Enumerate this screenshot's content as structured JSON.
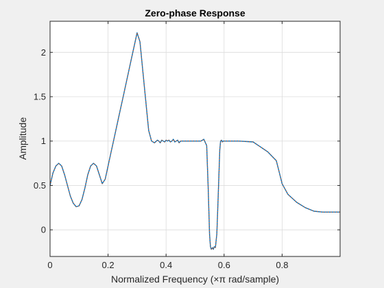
{
  "chart_data": {
    "type": "line",
    "title": "Zero-phase Response",
    "xlabel": "Normalized Frequency (×π rad/sample)",
    "ylabel": "Amplitude",
    "xlim": [
      0,
      1
    ],
    "ylim": [
      -0.3,
      2.35
    ],
    "xticks": [
      0,
      0.2,
      0.4,
      0.6,
      0.8
    ],
    "xticklabels": [
      "0",
      "0.2",
      "0.4",
      "0.6",
      "0.8"
    ],
    "yticks": [
      0,
      0.5,
      1,
      1.5,
      2
    ],
    "yticklabels": [
      "0",
      "0.5",
      "1",
      "1.5",
      "2"
    ],
    "grid": true,
    "colors": {
      "axes_background": "#ffffff",
      "figure_background": "#f0f0f0",
      "grid": "#dcdcdc",
      "axis": "#262626"
    },
    "series": [
      {
        "color": "#0072bd",
        "x": [
          0,
          0.01,
          0.02,
          0.03,
          0.04,
          0.05,
          0.06,
          0.07,
          0.08,
          0.09,
          0.1,
          0.11,
          0.12,
          0.13,
          0.14,
          0.15,
          0.16,
          0.17,
          0.18,
          0.19,
          0.2,
          0.21,
          0.22,
          0.23,
          0.24,
          0.25,
          0.26,
          0.27,
          0.28,
          0.29,
          0.3,
          0.31,
          0.32,
          0.33,
          0.34,
          0.35,
          0.36,
          0.37,
          0.375,
          0.38,
          0.385,
          0.39,
          0.395,
          0.4,
          0.405,
          0.41,
          0.415,
          0.42,
          0.425,
          0.43,
          0.435,
          0.44,
          0.445,
          0.45,
          0.46,
          0.47,
          0.48,
          0.49,
          0.5,
          0.51,
          0.52,
          0.53,
          0.54,
          0.545,
          0.55,
          0.553,
          0.556,
          0.56,
          0.563,
          0.566,
          0.57,
          0.575,
          0.58,
          0.585,
          0.588,
          0.591,
          0.594,
          0.597,
          0.6,
          0.605,
          0.61,
          0.615,
          0.62,
          0.63,
          0.65,
          0.7,
          0.75,
          0.78,
          0.79,
          0.8,
          0.82,
          0.85,
          0.88,
          0.91,
          0.94,
          0.97,
          1.0
        ],
        "y": [
          0.5,
          0.64,
          0.72,
          0.75,
          0.72,
          0.62,
          0.5,
          0.38,
          0.3,
          0.26,
          0.27,
          0.34,
          0.47,
          0.62,
          0.72,
          0.75,
          0.72,
          0.62,
          0.52,
          0.57,
          0.72,
          0.87,
          1.02,
          1.17,
          1.32,
          1.47,
          1.62,
          1.77,
          1.92,
          2.07,
          2.22,
          2.12,
          1.78,
          1.45,
          1.12,
          1.0,
          0.98,
          1.01,
          1.0,
          0.98,
          1.01,
          1.0,
          0.99,
          1.01,
          1.0,
          1.01,
          0.99,
          1.0,
          1.02,
          0.99,
          1.0,
          1.01,
          0.98,
          1.0,
          1.0,
          1.0,
          1.0,
          1.0,
          1.0,
          1.0,
          1.0,
          1.02,
          0.95,
          0.5,
          -0.05,
          -0.19,
          -0.22,
          -0.2,
          -0.22,
          -0.19,
          -0.2,
          -0.05,
          0.4,
          0.9,
          1.0,
          1.01,
          0.99,
          1.0,
          1.0,
          1.0,
          1.0,
          1.0,
          1.0,
          1.0,
          1.0,
          0.99,
          0.88,
          0.78,
          0.65,
          0.52,
          0.4,
          0.31,
          0.25,
          0.21,
          0.2,
          0.2,
          0.2
        ]
      },
      {
        "color": "#d95319",
        "style": "dotted",
        "x": [
          0,
          0.01,
          0.02,
          0.03,
          0.04,
          0.05,
          0.06,
          0.07,
          0.08,
          0.09,
          0.1,
          0.11,
          0.12,
          0.13,
          0.14,
          0.15,
          0.16,
          0.17,
          0.18,
          0.19,
          0.2,
          0.21,
          0.22,
          0.23,
          0.24,
          0.25,
          0.26,
          0.27,
          0.28,
          0.29,
          0.3,
          0.31,
          0.32,
          0.33,
          0.34,
          0.35,
          0.36,
          0.37,
          0.375,
          0.38,
          0.385,
          0.39,
          0.395,
          0.4,
          0.405,
          0.41,
          0.415,
          0.42,
          0.425,
          0.43,
          0.435,
          0.44,
          0.445,
          0.45,
          0.46,
          0.47,
          0.48,
          0.49,
          0.5,
          0.51,
          0.52,
          0.53,
          0.54,
          0.545,
          0.55,
          0.553,
          0.556,
          0.56,
          0.563,
          0.566,
          0.57,
          0.575,
          0.58,
          0.585,
          0.588,
          0.591,
          0.594,
          0.597,
          0.6,
          0.605,
          0.61,
          0.615,
          0.62,
          0.63,
          0.65,
          0.7,
          0.75,
          0.78,
          0.79,
          0.8,
          0.82,
          0.85,
          0.88,
          0.91,
          0.94,
          0.97,
          1.0
        ],
        "y": [
          0.5,
          0.64,
          0.72,
          0.75,
          0.72,
          0.62,
          0.5,
          0.38,
          0.3,
          0.26,
          0.27,
          0.34,
          0.47,
          0.62,
          0.72,
          0.75,
          0.72,
          0.62,
          0.52,
          0.57,
          0.72,
          0.87,
          1.02,
          1.17,
          1.32,
          1.47,
          1.62,
          1.77,
          1.92,
          2.07,
          2.22,
          2.12,
          1.78,
          1.45,
          1.12,
          1.0,
          0.98,
          1.01,
          1.0,
          0.98,
          1.01,
          1.0,
          0.99,
          1.01,
          1.0,
          1.01,
          0.99,
          1.0,
          1.02,
          0.99,
          1.0,
          1.01,
          0.98,
          1.0,
          1.0,
          1.0,
          1.0,
          1.0,
          1.0,
          1.0,
          1.0,
          1.02,
          0.95,
          0.5,
          -0.05,
          -0.19,
          -0.22,
          -0.2,
          -0.22,
          -0.19,
          -0.2,
          -0.05,
          0.4,
          0.9,
          1.0,
          1.01,
          0.99,
          1.0,
          1.0,
          1.0,
          1.0,
          1.0,
          1.0,
          1.0,
          1.0,
          0.99,
          0.88,
          0.78,
          0.65,
          0.52,
          0.4,
          0.31,
          0.25,
          0.21,
          0.2,
          0.2,
          0.2
        ]
      }
    ]
  }
}
